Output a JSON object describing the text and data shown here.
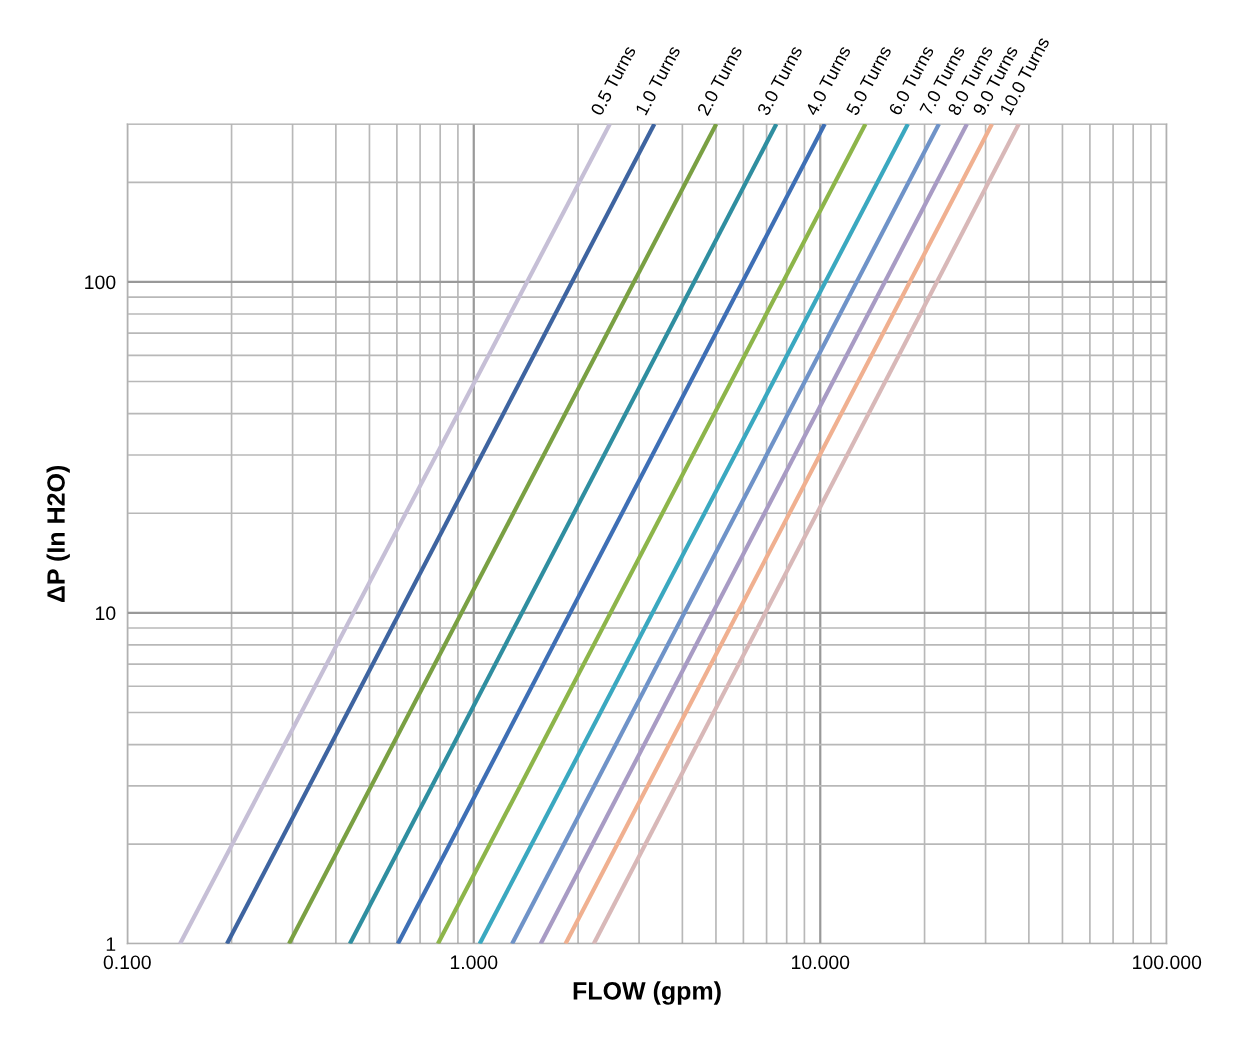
{
  "chart_data": {
    "type": "line",
    "xlabel": "FLOW (gpm)",
    "ylabel": "ΔP (In H2O)",
    "log": "xy",
    "grid": true,
    "legend": false,
    "marker": "none",
    "line_style": "solid",
    "xlim": [
      0.1,
      100
    ],
    "ylim": [
      1,
      300
    ],
    "xticks": [
      {
        "value": 0.1,
        "label": "0.100"
      },
      {
        "value": 1,
        "label": "1.000"
      },
      {
        "value": 10,
        "label": "10.000"
      },
      {
        "value": 100,
        "label": "100.000"
      }
    ],
    "yticks": [
      1,
      10,
      100
    ],
    "series": [
      {
        "name": "0.5 Turns",
        "color": "#c6bfd6",
        "x": [
          0.142,
          2.47
        ],
        "values": [
          1,
          300
        ]
      },
      {
        "name": "1.0 Turns",
        "color": "#3e64a0",
        "x": [
          0.194,
          3.32
        ],
        "values": [
          1,
          300
        ]
      },
      {
        "name": "2.0 Turns",
        "color": "#7aa043",
        "x": [
          0.293,
          5.01
        ],
        "values": [
          1,
          300
        ]
      },
      {
        "name": "3.0 Turns",
        "color": "#2f8ea0",
        "x": [
          0.439,
          7.47
        ],
        "values": [
          1,
          300
        ]
      },
      {
        "name": "4.0 Turns",
        "color": "#3e6fb5",
        "x": [
          0.604,
          10.3
        ],
        "values": [
          1,
          300
        ]
      },
      {
        "name": "5.0 Turns",
        "color": "#8db54a",
        "x": [
          0.788,
          13.5
        ],
        "values": [
          1,
          300
        ]
      },
      {
        "name": "6.0 Turns",
        "color": "#3aa8c0",
        "x": [
          1.04,
          17.9
        ],
        "values": [
          1,
          300
        ]
      },
      {
        "name": "7.0 Turns",
        "color": "#6f93c8",
        "x": [
          1.29,
          22.0
        ],
        "values": [
          1,
          300
        ]
      },
      {
        "name": "8.0 Turns",
        "color": "#a89bc4",
        "x": [
          1.56,
          26.5
        ],
        "values": [
          1,
          300
        ]
      },
      {
        "name": "9.0 Turns",
        "color": "#f0b090",
        "x": [
          1.84,
          31.3
        ],
        "values": [
          1,
          300
        ]
      },
      {
        "name": "10.0 Turns",
        "color": "#d8b8b8",
        "x": [
          2.22,
          37.4
        ],
        "values": [
          1,
          300
        ]
      }
    ]
  }
}
